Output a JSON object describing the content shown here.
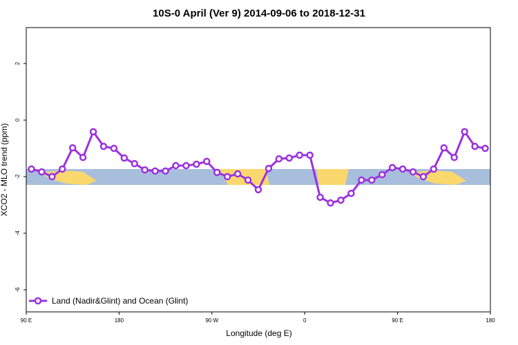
{
  "chart_data": {
    "type": "line",
    "title": "10S-0 April (Ver 9)   2014-09-06 to 2018-12-31",
    "x_label": "Longitude (deg E)",
    "y_label": "XCO2 - MLO trend (ppm)",
    "x": [
      95,
      105,
      115,
      125,
      135,
      145,
      155,
      165,
      175,
      185,
      195,
      205,
      215,
      225,
      235,
      245,
      255,
      265,
      275,
      285,
      295,
      305,
      315,
      325,
      335,
      345,
      355,
      365,
      375,
      385,
      395,
      405,
      415,
      425,
      435,
      445,
      455,
      465,
      475,
      485,
      495,
      505,
      515,
      525,
      535
    ],
    "series": [
      {
        "name": "Land (Nadir&Glint) and Ocean (Glint)",
        "color": "#9b30e0",
        "values": [
          -1.73,
          -1.83,
          -2.0,
          -1.73,
          -0.98,
          -1.32,
          -0.41,
          -0.93,
          -1.0,
          -1.34,
          -1.54,
          -1.76,
          -1.8,
          -1.8,
          -1.61,
          -1.61,
          -1.56,
          -1.46,
          -1.85,
          -2.0,
          -1.9,
          -2.12,
          -2.46,
          -1.71,
          -1.37,
          -1.34,
          -1.24,
          -1.24,
          -2.73,
          -2.93,
          -2.83,
          -2.59,
          -2.12,
          -2.12,
          -1.93,
          -1.68,
          -1.73,
          -1.83,
          -2.0,
          -1.73,
          -0.98,
          -1.32,
          -0.41,
          -0.93,
          -1.0
        ]
      }
    ],
    "xlim": [
      90,
      540
    ],
    "xticks": [
      {
        "value": 90,
        "label": "90 E"
      },
      180,
      {
        "value": 270,
        "label": "90 W"
      },
      {
        "value": 360,
        "label": "0"
      },
      {
        "value": 450,
        "label": "90 E"
      },
      {
        "value": 540,
        "label": "180"
      }
    ],
    "ylim": [
      -6.78,
      3.27
    ],
    "yticks": [
      2,
      0,
      -2,
      -4,
      -6
    ],
    "legend": "bottom-left"
  }
}
